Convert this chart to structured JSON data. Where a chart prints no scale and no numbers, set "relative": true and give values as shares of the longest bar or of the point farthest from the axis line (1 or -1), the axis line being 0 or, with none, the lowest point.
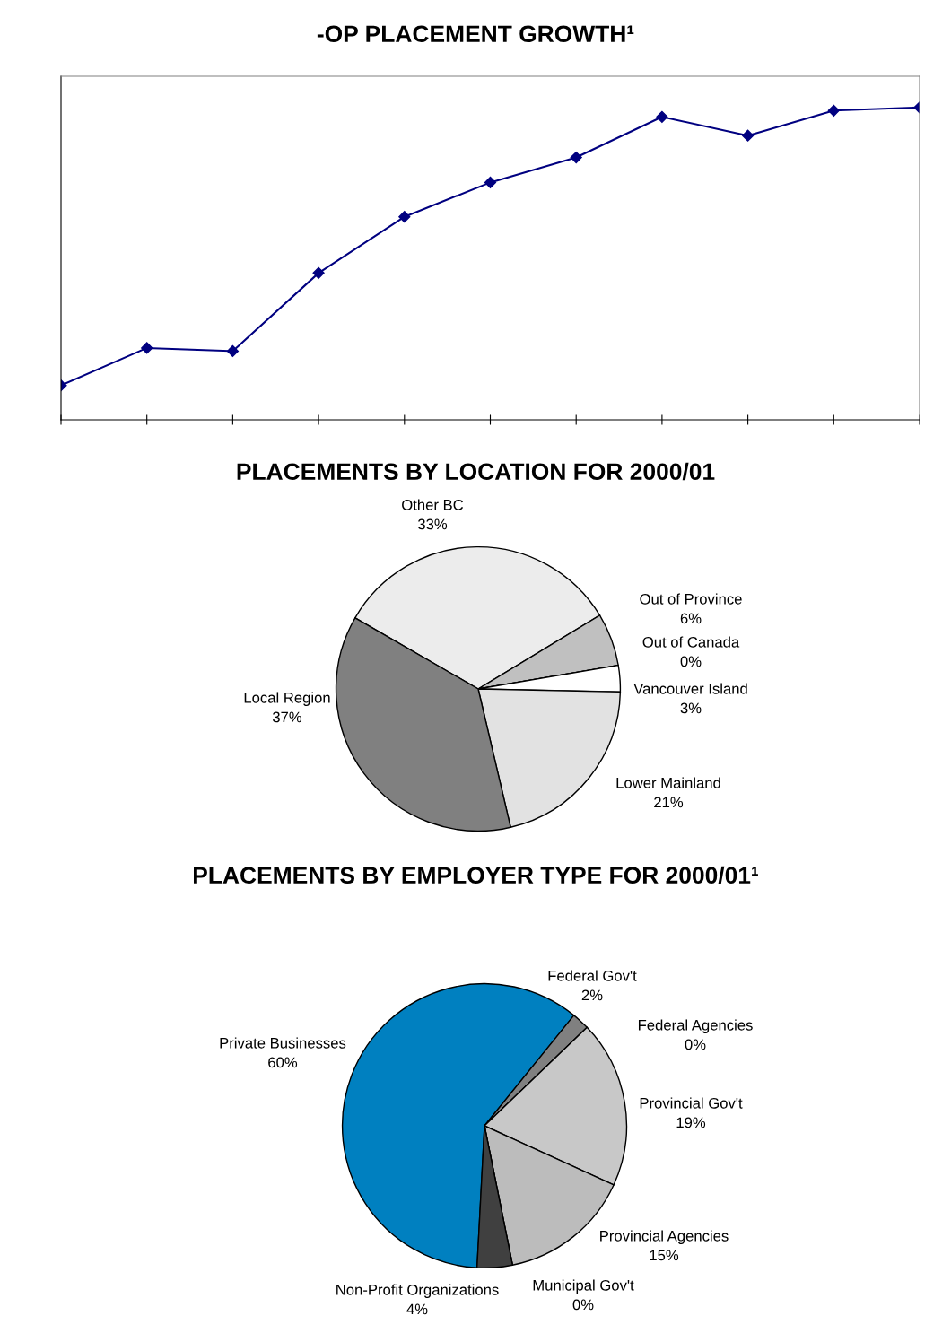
{
  "chart_data": [
    {
      "type": "line",
      "title": "-OP PLACEMENT GROWTH¹",
      "relative": true,
      "categories": [
        null,
        null,
        null,
        null,
        null,
        null,
        null,
        null,
        null,
        null,
        null
      ],
      "series": [
        {
          "color": "#000080",
          "values": [
            0.11,
            0.23,
            0.22,
            0.47,
            0.65,
            0.76,
            0.84,
            0.97,
            0.91,
            0.99,
            1.0
          ]
        }
      ],
      "marker": "diamond",
      "line_style": "solid",
      "grid": false,
      "legend": false
    },
    {
      "type": "pie",
      "title": "PLACEMENTS BY LOCATION FOR 2000/01",
      "categories": [
        "Other BC",
        "Out of Province",
        "Out of Canada",
        "Vancouver Island",
        "Lower Mainland",
        "Local Region"
      ],
      "values": [
        33,
        6,
        0,
        3,
        21,
        37
      ],
      "colors": [
        "#ececec",
        "#c0c0c0",
        "#000000",
        "#ffffff",
        "#e2e2e2",
        "#808080"
      ],
      "value_labels": [
        "33%",
        "6%",
        "0%",
        "3%",
        "21%",
        "37%"
      ]
    },
    {
      "type": "pie",
      "title": "PLACEMENTS BY EMPLOYER TYPE FOR 2000/01¹",
      "categories": [
        "Private Businesses",
        "Federal Gov't",
        "Federal Agencies",
        "Provincial Gov't",
        "Provincial Agencies",
        "Municipal Gov't",
        "Non-Profit Organizations"
      ],
      "values": [
        60,
        2,
        0,
        19,
        15,
        0,
        4
      ],
      "colors": [
        "#0080c0",
        "#808080",
        "#000000",
        "#c8c8c8",
        "#bcbcbc",
        "#000000",
        "#404040"
      ],
      "value_labels": [
        "60%",
        "2%",
        "0%",
        "19%",
        "15%",
        "0%",
        "4%"
      ]
    }
  ]
}
